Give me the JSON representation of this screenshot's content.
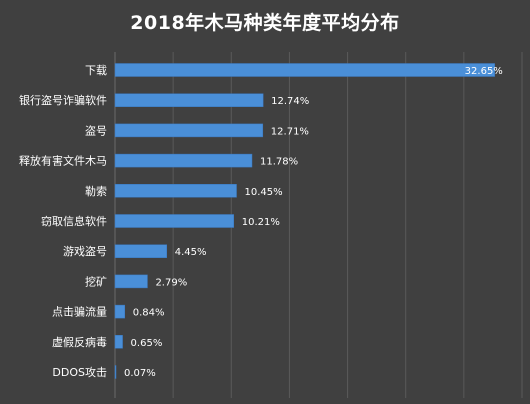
{
  "chart_data": {
    "type": "bar",
    "orientation": "horizontal",
    "title": "2018年木马种类年度平均分布",
    "categories": [
      "下载",
      "银行盗号诈骗软件",
      "盗号",
      "释放有害文件木马",
      "勒索",
      "窃取信息软件",
      "游戏盗号",
      "挖矿",
      "点击骗流量",
      "虚假反病毒",
      "DDOS攻击"
    ],
    "values": [
      32.65,
      12.74,
      12.71,
      11.78,
      10.45,
      10.21,
      4.45,
      2.79,
      0.84,
      0.65,
      0.07
    ],
    "value_labels": [
      "32.65%",
      "12.74%",
      "12.71%",
      "11.78%",
      "10.45%",
      "10.21%",
      "4.45%",
      "2.79%",
      "0.84%",
      "0.65%",
      "0.07%"
    ],
    "xlim": [
      0,
      35
    ],
    "grid": true,
    "xlabel": "",
    "ylabel": "",
    "colors": {
      "background": "#404040",
      "bar": "#4a8fd8",
      "bar_edge": "#3a78c0",
      "grid": "#5a5a5a",
      "text": "#ffffff"
    }
  }
}
